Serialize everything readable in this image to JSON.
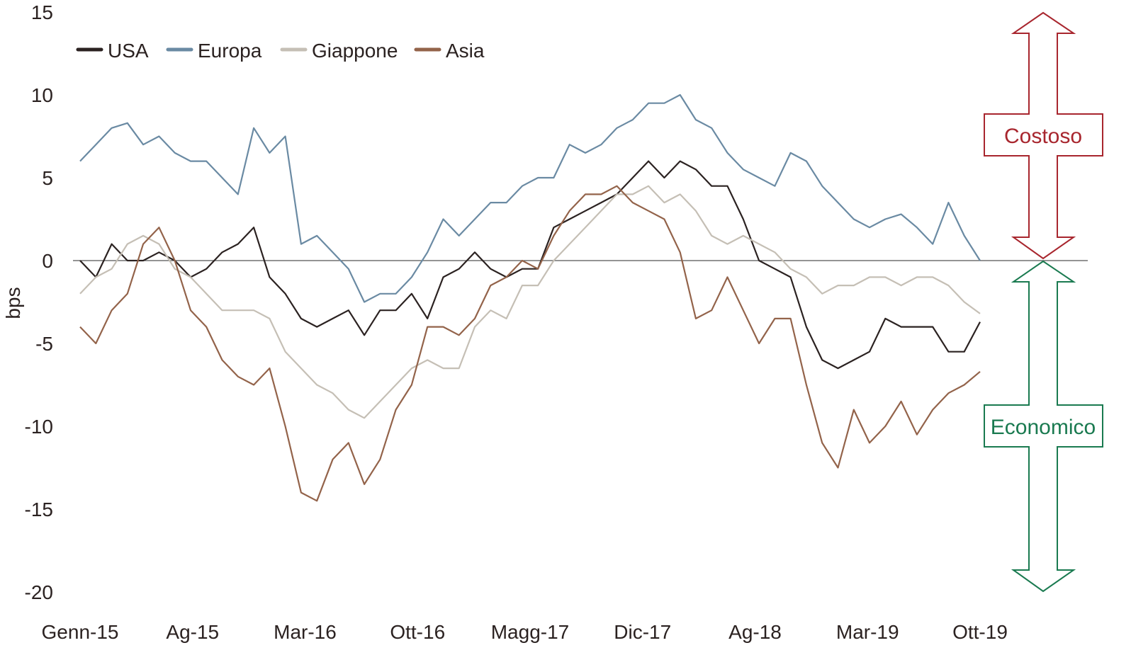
{
  "chart_data": {
    "type": "line",
    "title": "",
    "xlabel": "",
    "ylabel": "bps",
    "ylim": [
      -20,
      15
    ],
    "yticks": [
      15,
      10,
      5,
      0,
      -5,
      -10,
      -15,
      -20
    ],
    "xtick_labels": [
      "Genn-15",
      "Ag-15",
      "Mar-16",
      "Ott-16",
      "Magg-17",
      "Dic-17",
      "Ag-18",
      "Mar-19",
      "Ott-19"
    ],
    "x_start": "Genn-15",
    "x_end": "Ott-19",
    "x_frequency": "monthly",
    "grid": false,
    "zero_line": true,
    "legend_position": "top-left",
    "series": [
      {
        "name": "USA",
        "color": "#2b2221",
        "values": [
          0,
          -1,
          1,
          0,
          0,
          0.5,
          0,
          -1,
          -0.5,
          0.5,
          1,
          2,
          -1,
          -2,
          -3.5,
          -4,
          -3.5,
          -3,
          -4.5,
          -3,
          -3,
          -2,
          -3.5,
          -1,
          -0.5,
          0.5,
          -0.5,
          -1,
          -0.5,
          -0.5,
          2,
          2.5,
          3,
          3.5,
          4,
          5,
          6,
          5,
          6,
          5.5,
          4.5,
          4.5,
          2.5,
          0,
          -0.5,
          -1,
          -4,
          -6,
          -6.5,
          -6,
          -5.5,
          -3.5,
          -4,
          -4,
          -4,
          -5.5,
          -5.5,
          -3.7
        ]
      },
      {
        "name": "Europa",
        "color": "#6a8aa3",
        "values": [
          6,
          7,
          8,
          8.3,
          7,
          7.5,
          6.5,
          6,
          6,
          5,
          4,
          8,
          6.5,
          7.5,
          1,
          1.5,
          0.5,
          -0.5,
          -2.5,
          -2,
          -2,
          -1,
          0.5,
          2.5,
          1.5,
          2.5,
          3.5,
          3.5,
          4.5,
          5,
          5,
          7,
          6.5,
          7,
          8,
          8.5,
          9.5,
          9.5,
          10,
          8.5,
          8,
          6.5,
          5.5,
          5,
          4.5,
          6.5,
          6,
          4.5,
          3.5,
          2.5,
          2,
          2.5,
          2.8,
          2,
          1,
          3.5,
          1.5,
          0
        ]
      },
      {
        "name": "Giappone",
        "color": "#c5bfb5",
        "values": [
          -2,
          -1,
          -0.5,
          1,
          1.5,
          1,
          -0.5,
          -1,
          -2,
          -3,
          -3,
          -3,
          -3.5,
          -5.5,
          -6.5,
          -7.5,
          -8,
          -9,
          -9.5,
          -8.5,
          -7.5,
          -6.5,
          -6,
          -6.5,
          -6.5,
          -4,
          -3,
          -3.5,
          -1.5,
          -1.5,
          0,
          1,
          2,
          3,
          4,
          4,
          4.5,
          3.5,
          4,
          3,
          1.5,
          1,
          1.5,
          1,
          0.5,
          -0.5,
          -1,
          -2,
          -1.5,
          -1.5,
          -1,
          -1,
          -1.5,
          -1,
          -1,
          -1.5,
          -2.5,
          -3.2
        ]
      },
      {
        "name": "Asia",
        "color": "#93634a",
        "values": [
          -4,
          -5,
          -3,
          -2,
          1,
          2,
          0,
          -3,
          -4,
          -6,
          -7,
          -7.5,
          -6.5,
          -10,
          -14,
          -14.5,
          -12,
          -11,
          -13.5,
          -12,
          -9,
          -7.5,
          -4,
          -4,
          -4.5,
          -3.5,
          -1.5,
          -1,
          0,
          -0.5,
          1.5,
          3,
          4,
          4,
          4.5,
          3.5,
          3,
          2.5,
          0.5,
          -3.5,
          -3,
          -1,
          -3,
          -5,
          -3.5,
          -3.5,
          -7.5,
          -11,
          -12.5,
          -9,
          -11,
          -10,
          -8.5,
          -10.5,
          -9,
          -8,
          -7.5,
          -6.7
        ]
      }
    ],
    "annotations": [
      {
        "label": "Costoso",
        "color": "#a8262e",
        "direction": "up"
      },
      {
        "label": "Economico",
        "color": "#1a7a50",
        "direction": "down"
      }
    ]
  }
}
